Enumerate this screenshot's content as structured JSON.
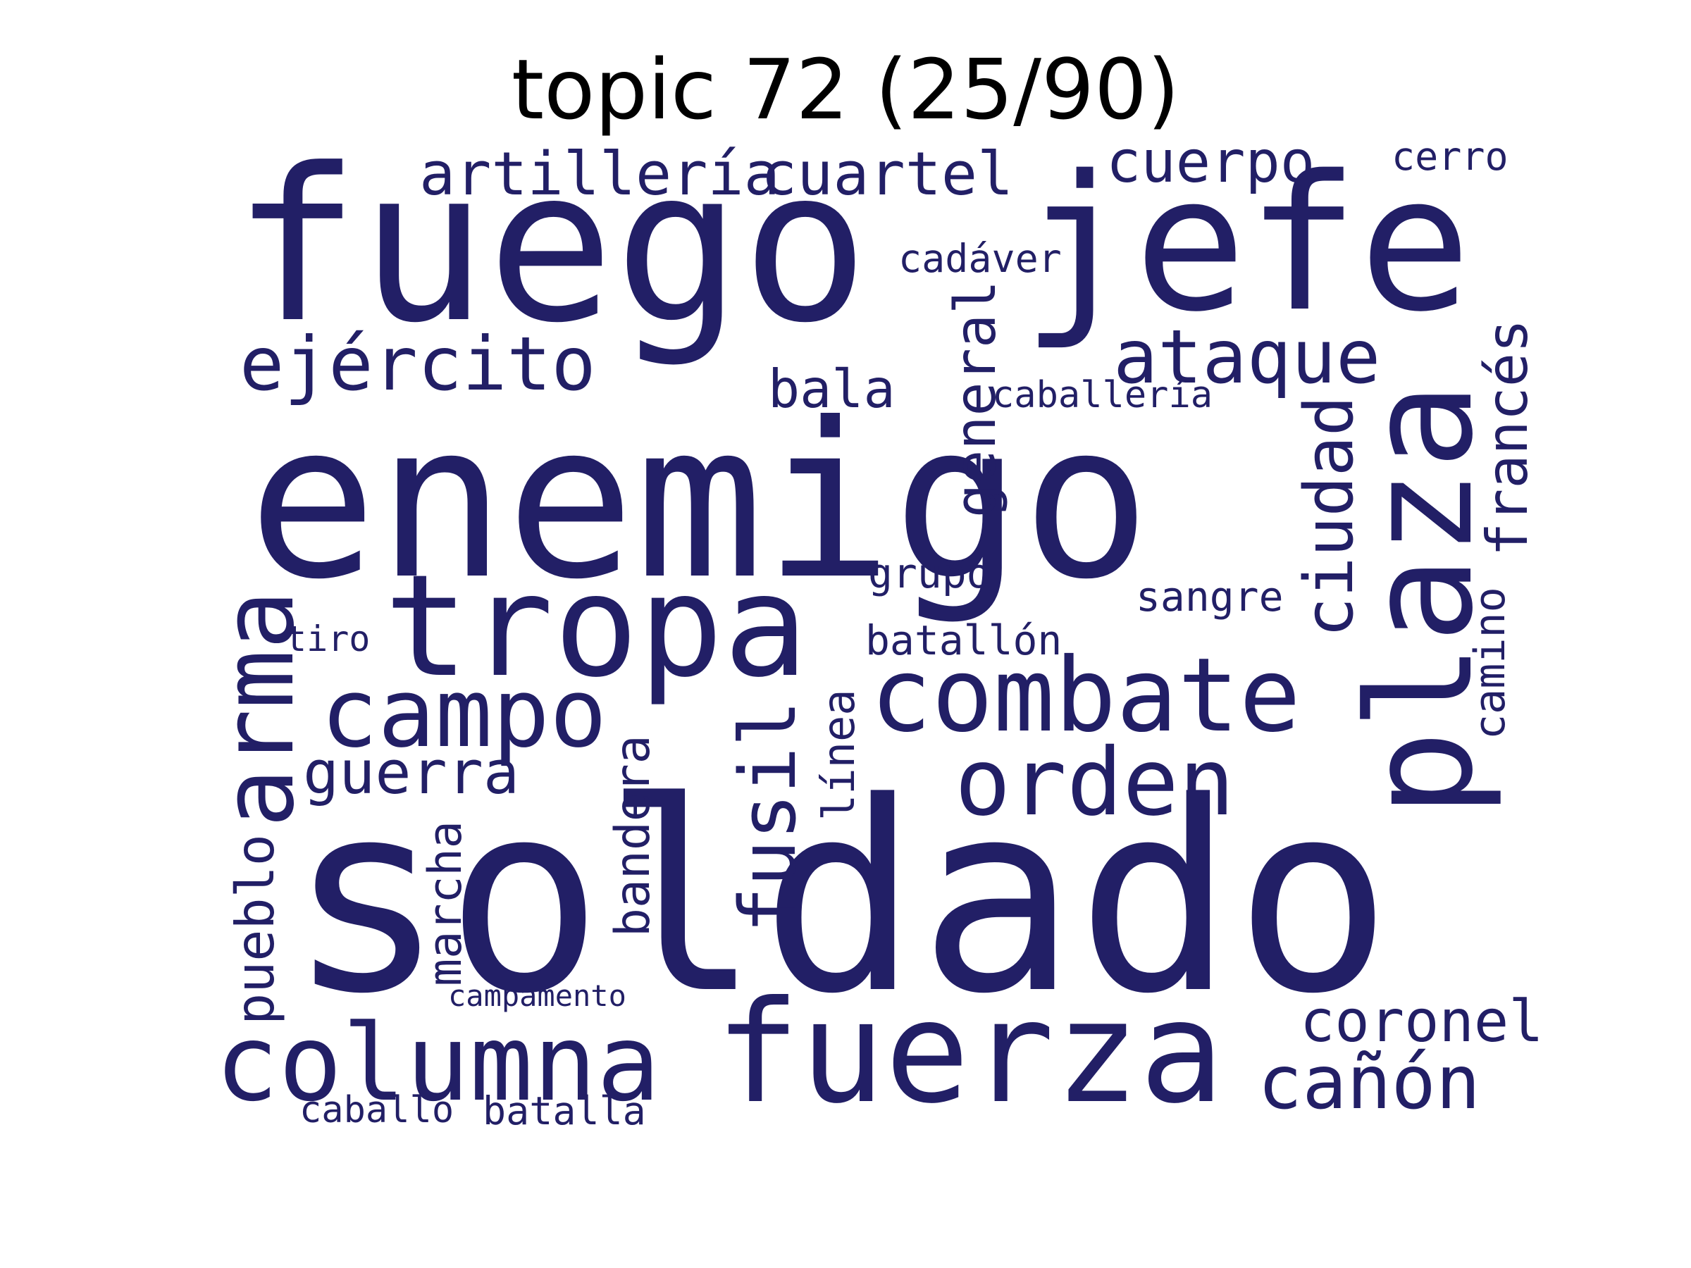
{
  "title": "topic 72 (25/90)",
  "word_color": "#221f66",
  "words": [
    {
      "text": "soldado",
      "weight": 1.0
    },
    {
      "text": "enemigo",
      "weight": 0.93
    },
    {
      "text": "fuego",
      "weight": 0.82
    },
    {
      "text": "jefe",
      "weight": 0.8
    },
    {
      "text": "plaza",
      "weight": 0.63
    },
    {
      "text": "tropa",
      "weight": 0.61
    },
    {
      "text": "fuerza",
      "weight": 0.59
    },
    {
      "text": "columna",
      "weight": 0.46
    },
    {
      "text": "combate",
      "weight": 0.44
    },
    {
      "text": "arma",
      "weight": 0.43
    },
    {
      "text": "campo",
      "weight": 0.41
    },
    {
      "text": "orden",
      "weight": 0.4
    },
    {
      "text": "fusil",
      "weight": 0.34
    },
    {
      "text": "cañón",
      "weight": 0.33
    },
    {
      "text": "ataque",
      "weight": 0.32
    },
    {
      "text": "ejército",
      "weight": 0.32
    },
    {
      "text": "ciudad",
      "weight": 0.29
    },
    {
      "text": "cuartel",
      "weight": 0.26
    },
    {
      "text": "artillería",
      "weight": 0.26
    },
    {
      "text": "guerra",
      "weight": 0.26
    },
    {
      "text": "cuerpo",
      "weight": 0.25
    },
    {
      "text": "coronel",
      "weight": 0.25
    },
    {
      "text": "general",
      "weight": 0.24
    },
    {
      "text": "francés",
      "weight": 0.24
    },
    {
      "text": "pueblo",
      "weight": 0.23
    },
    {
      "text": "bala",
      "weight": 0.23
    },
    {
      "text": "bandera",
      "weight": 0.2
    },
    {
      "text": "marcha",
      "weight": 0.2
    },
    {
      "text": "línea",
      "weight": 0.19
    },
    {
      "text": "camino",
      "weight": 0.18
    },
    {
      "text": "batallón",
      "weight": 0.18
    },
    {
      "text": "grupo",
      "weight": 0.17
    },
    {
      "text": "sangre",
      "weight": 0.17
    },
    {
      "text": "batalla",
      "weight": 0.17
    },
    {
      "text": "cadáver",
      "weight": 0.17
    },
    {
      "text": "caballo",
      "weight": 0.16
    },
    {
      "text": "cerro",
      "weight": 0.16
    },
    {
      "text": "caballería",
      "weight": 0.15
    },
    {
      "text": "tiro",
      "weight": 0.15
    },
    {
      "text": "campamento",
      "weight": 0.13
    }
  ]
}
